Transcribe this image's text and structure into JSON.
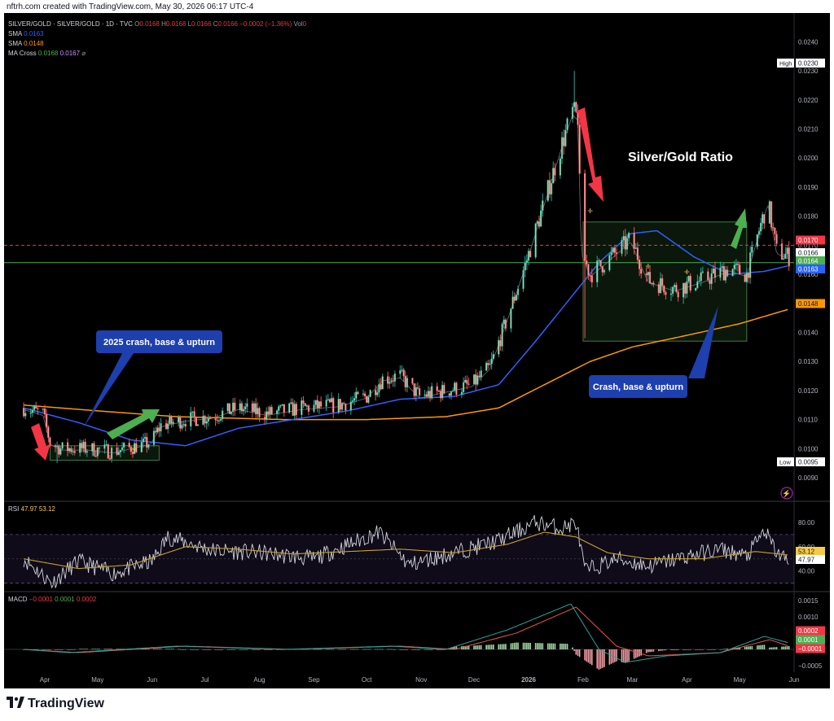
{
  "credit": "nftrh.com created with TradingView.com, May 30, 2026 06:17 UTC-4",
  "brand": "TradingView",
  "brand_icon": "tradingview-logo-icon",
  "legend": {
    "symbol": "SILVER/GOLD · SILVER/GOLD · 1D · TVC",
    "o_label": "O",
    "o": "0.0168",
    "h_label": "H",
    "h": "0.0168",
    "l_label": "L",
    "l": "0.0166",
    "c_label": "C",
    "c": "0.0166",
    "change": "−0.0002 (−1.36%)",
    "vol_label": "Vol",
    "vol": "0",
    "sma1_label": "SMA",
    "sma1": "0.0163",
    "sma2_label": "SMA",
    "sma2": "0.0148",
    "macross_label": "MA Cross",
    "macross_a": "0.0168",
    "macross_b": "0.0167",
    "macross_c": "⌀"
  },
  "rsi_legend": {
    "label": "RSI",
    "v1": "47.97",
    "v2": "53.12"
  },
  "macd_legend": {
    "label": "MACD",
    "v1": "−0.0001",
    "v2": "0.0001",
    "v3": "0.0002"
  },
  "colors": {
    "up": "#26a69a",
    "up_fill": "#a5d6a7",
    "down": "#ef5350",
    "down_fill": "#f5a0a8",
    "sma50": "#2962ff",
    "sma200": "#ff9800",
    "hline_red": "#f23645",
    "hline_green": "#4caf50",
    "annotation_blue": "#1e3fae",
    "arrow_red": "#f23645",
    "arrow_green": "#4caf50"
  },
  "annotations": {
    "title": "Silver/Gold Ratio",
    "label1": "2025 crash, base & upturn",
    "label2": "Crash, base & upturn",
    "high_label": "High",
    "high_value": "0.0230",
    "low_label": "Low",
    "low_value": "0.0095"
  },
  "chart_data": [
    {
      "type": "candlestick",
      "title": "SILVER/GOLD · 1D · TVC",
      "x_ticks": [
        "Apr",
        "May",
        "Jun",
        "Jul",
        "Aug",
        "Sep",
        "Oct",
        "Nov",
        "Dec",
        "2026",
        "Feb",
        "Mar",
        "Apr",
        "May",
        "Jun"
      ],
      "ylim": [
        0.0083,
        0.0246
      ],
      "y_ticks": [
        "0.0240",
        "0.0230",
        "0.0220",
        "0.0210",
        "0.0200",
        "0.0190",
        "0.0180",
        "0.0170",
        "0.0160",
        "0.0150",
        "0.0140",
        "0.0130",
        "0.0120",
        "0.0110",
        "0.0100",
        "0.0090"
      ],
      "price_tags": [
        {
          "label": "0.0230",
          "kind": "high"
        },
        {
          "label": "0.0170",
          "kind": "red"
        },
        {
          "label": "0.0166",
          "kind": "last"
        },
        {
          "label": "0.0164",
          "kind": "green"
        },
        {
          "label": "0.0163",
          "kind": "blue"
        },
        {
          "label": "0.0148",
          "kind": "orange"
        },
        {
          "label": "0.0095",
          "kind": "low"
        }
      ],
      "horizontal_lines": [
        0.017,
        0.0164
      ],
      "close_anchors": [
        [
          "2025-03-20",
          0.0114
        ],
        [
          "2025-03-31",
          0.0112
        ],
        [
          "2025-04-04",
          0.0102
        ],
        [
          "2025-04-10",
          0.01
        ],
        [
          "2025-04-25",
          0.01
        ],
        [
          "2025-05-10",
          0.0099
        ],
        [
          "2025-05-31",
          0.0102
        ],
        [
          "2025-06-06",
          0.0108
        ],
        [
          "2025-06-20",
          0.011
        ],
        [
          "2025-07-05",
          0.0111
        ],
        [
          "2025-07-20",
          0.0114
        ],
        [
          "2025-08-05",
          0.0112
        ],
        [
          "2025-08-25",
          0.0114
        ],
        [
          "2025-09-15",
          0.0115
        ],
        [
          "2025-10-01",
          0.0118
        ],
        [
          "2025-10-10",
          0.0124
        ],
        [
          "2025-10-20",
          0.0125
        ],
        [
          "2025-10-31",
          0.0118
        ],
        [
          "2025-11-15",
          0.012
        ],
        [
          "2025-11-30",
          0.0122
        ],
        [
          "2025-12-10",
          0.0128
        ],
        [
          "2025-12-20",
          0.0145
        ],
        [
          "2025-12-31",
          0.0165
        ],
        [
          "2026-01-10",
          0.0185
        ],
        [
          "2026-01-20",
          0.0205
        ],
        [
          "2026-01-26",
          0.0216
        ],
        [
          "2026-01-29",
          0.0214
        ],
        [
          "2026-01-31",
          0.0168
        ],
        [
          "2026-02-05",
          0.016
        ],
        [
          "2026-02-15",
          0.0165
        ],
        [
          "2026-02-28",
          0.0172
        ],
        [
          "2026-03-10",
          0.0158
        ],
        [
          "2026-03-25",
          0.0155
        ],
        [
          "2026-04-10",
          0.0158
        ],
        [
          "2026-04-25",
          0.0162
        ],
        [
          "2026-05-05",
          0.016
        ],
        [
          "2026-05-12",
          0.0175
        ],
        [
          "2026-05-17",
          0.0185
        ],
        [
          "2026-05-22",
          0.0168
        ],
        [
          "2026-05-29",
          0.0166
        ]
      ],
      "sma_fast_anchors": [
        [
          "2025-03-20",
          0.0114
        ],
        [
          "2025-04-20",
          0.0109
        ],
        [
          "2025-05-20",
          0.0103
        ],
        [
          "2025-06-20",
          0.0101
        ],
        [
          "2025-07-20",
          0.0107
        ],
        [
          "2025-08-20",
          0.011
        ],
        [
          "2025-09-20",
          0.0113
        ],
        [
          "2025-10-20",
          0.0117
        ],
        [
          "2025-11-20",
          0.0118
        ],
        [
          "2025-12-15",
          0.0122
        ],
        [
          "2026-01-05",
          0.0137
        ],
        [
          "2026-01-25",
          0.0152
        ],
        [
          "2026-02-10",
          0.0164
        ],
        [
          "2026-02-28",
          0.0174
        ],
        [
          "2026-03-15",
          0.0175
        ],
        [
          "2026-04-05",
          0.0166
        ],
        [
          "2026-04-25",
          0.016
        ],
        [
          "2026-05-15",
          0.0161
        ],
        [
          "2026-05-29",
          0.0163
        ]
      ],
      "sma_slow_anchors": [
        [
          "2025-03-20",
          0.0115
        ],
        [
          "2025-05-01",
          0.0113
        ],
        [
          "2025-06-15",
          0.0111
        ],
        [
          "2025-08-15",
          0.011
        ],
        [
          "2025-10-01",
          0.011
        ],
        [
          "2025-11-15",
          0.0111
        ],
        [
          "2025-12-15",
          0.0114
        ],
        [
          "2026-01-10",
          0.0122
        ],
        [
          "2026-02-05",
          0.013
        ],
        [
          "2026-03-01",
          0.0135
        ],
        [
          "2026-04-01",
          0.0139
        ],
        [
          "2026-05-01",
          0.0143
        ],
        [
          "2026-05-29",
          0.0148
        ]
      ],
      "boxes": [
        {
          "from": "2025-04-04",
          "to": "2025-06-05",
          "y": [
            0.0096,
            0.0101
          ]
        },
        {
          "from": "2026-02-01",
          "to": "2026-05-05",
          "y": [
            0.0137,
            0.0178
          ]
        }
      ]
    },
    {
      "type": "line",
      "title": "RSI",
      "ylim": [
        25,
        88
      ],
      "y_ticks": [
        "80.00",
        "60.00",
        "40.00"
      ],
      "band": [
        30,
        70
      ],
      "value_tags": [
        "53.12",
        "47.97"
      ],
      "rsi_anchors": [
        [
          "2025-03-20",
          50
        ],
        [
          "2025-04-05",
          30
        ],
        [
          "2025-04-20",
          48
        ],
        [
          "2025-05-10",
          38
        ],
        [
          "2025-06-01",
          48
        ],
        [
          "2025-06-10",
          68
        ],
        [
          "2025-07-05",
          57
        ],
        [
          "2025-08-01",
          55
        ],
        [
          "2025-09-01",
          50
        ],
        [
          "2025-10-08",
          72
        ],
        [
          "2025-10-25",
          45
        ],
        [
          "2025-11-20",
          55
        ],
        [
          "2025-12-15",
          65
        ],
        [
          "2026-01-05",
          80
        ],
        [
          "2026-01-20",
          75
        ],
        [
          "2026-01-28",
          80
        ],
        [
          "2026-02-02",
          40
        ],
        [
          "2026-02-20",
          50
        ],
        [
          "2026-03-10",
          44
        ],
        [
          "2026-04-01",
          52
        ],
        [
          "2026-04-20",
          58
        ],
        [
          "2026-05-05",
          52
        ],
        [
          "2026-05-15",
          73
        ],
        [
          "2026-05-22",
          55
        ],
        [
          "2026-05-29",
          47.97
        ]
      ],
      "signal_anchors": [
        [
          "2025-03-20",
          50
        ],
        [
          "2025-04-20",
          42
        ],
        [
          "2025-05-20",
          45
        ],
        [
          "2025-06-20",
          60
        ],
        [
          "2025-07-20",
          58
        ],
        [
          "2025-08-20",
          54
        ],
        [
          "2025-09-20",
          56
        ],
        [
          "2025-10-20",
          58
        ],
        [
          "2025-11-20",
          55
        ],
        [
          "2025-12-20",
          62
        ],
        [
          "2026-01-10",
          72
        ],
        [
          "2026-01-28",
          68
        ],
        [
          "2026-02-15",
          55
        ],
        [
          "2026-03-10",
          50
        ],
        [
          "2026-04-10",
          50
        ],
        [
          "2026-05-10",
          56
        ],
        [
          "2026-05-29",
          53.12
        ]
      ]
    },
    {
      "type": "line",
      "title": "MACD",
      "ylim": [
        -0.0006,
        0.0017
      ],
      "y_ticks": [
        "0.0015",
        "0.0010",
        "0.0005",
        "−0.0005"
      ],
      "value_tags": [
        "0.0002",
        "0.0001",
        "−0.0001"
      ],
      "macd_anchors": [
        [
          "2025-03-20",
          0.0
        ],
        [
          "2025-04-15",
          -0.0001
        ],
        [
          "2025-06-15",
          0.0001
        ],
        [
          "2025-08-15",
          0.0
        ],
        [
          "2025-10-15",
          0.0001
        ],
        [
          "2025-11-15",
          0.0
        ],
        [
          "2025-12-20",
          0.0006
        ],
        [
          "2026-01-25",
          0.0014
        ],
        [
          "2026-02-10",
          0.0
        ],
        [
          "2026-02-25",
          -0.0004
        ],
        [
          "2026-03-20",
          -0.0002
        ],
        [
          "2026-04-20",
          -0.0001
        ],
        [
          "2026-05-15",
          0.0004
        ],
        [
          "2026-05-29",
          0.0002
        ]
      ],
      "signal_anchors": [
        [
          "2025-03-20",
          0.0
        ],
        [
          "2025-04-20",
          -0.0001
        ],
        [
          "2025-06-20",
          0.0001
        ],
        [
          "2025-08-20",
          0.0
        ],
        [
          "2025-10-20",
          0.0001
        ],
        [
          "2025-11-20",
          0.0
        ],
        [
          "2025-12-25",
          0.0005
        ],
        [
          "2026-01-28",
          0.0013
        ],
        [
          "2026-02-20",
          0.0001
        ],
        [
          "2026-03-10",
          -0.0002
        ],
        [
          "2026-04-20",
          -0.0001
        ],
        [
          "2026-05-18",
          0.0003
        ],
        [
          "2026-05-29",
          0.0001
        ]
      ]
    }
  ]
}
